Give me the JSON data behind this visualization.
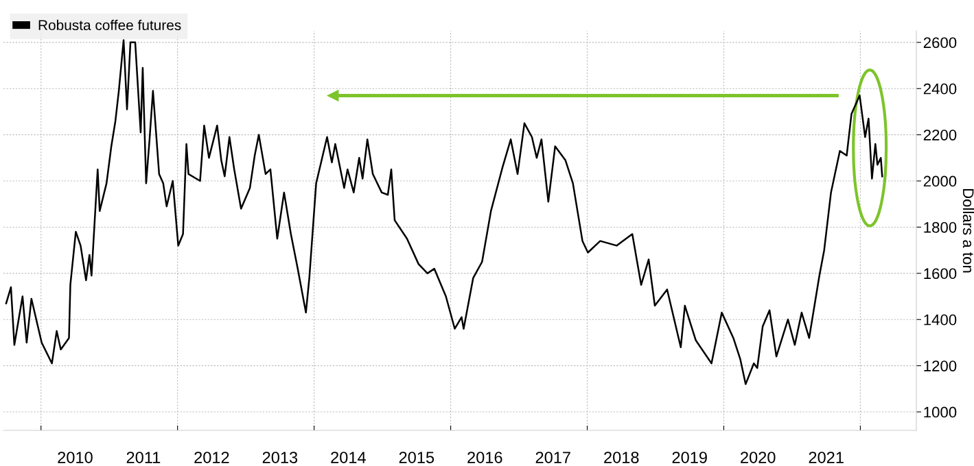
{
  "chart_data": {
    "type": "line",
    "ylabel": "Dollars a ton",
    "xlim": [
      2009.45,
      2022.82
    ],
    "ylim": [
      920,
      2650
    ],
    "xticks": [
      {
        "value": 2010,
        "label": null
      },
      {
        "value": 2010.5,
        "label": "2010"
      },
      {
        "value": 2011.5,
        "label": "2011"
      },
      {
        "value": 2012,
        "label": null
      },
      {
        "value": 2012.5,
        "label": "2012"
      },
      {
        "value": 2013.5,
        "label": "2013"
      },
      {
        "value": 2014,
        "label": null
      },
      {
        "value": 2014.5,
        "label": "2014"
      },
      {
        "value": 2015.5,
        "label": "2015"
      },
      {
        "value": 2016,
        "label": null
      },
      {
        "value": 2016.5,
        "label": "2016"
      },
      {
        "value": 2017.5,
        "label": "2017"
      },
      {
        "value": 2018,
        "label": null
      },
      {
        "value": 2018.5,
        "label": "2018"
      },
      {
        "value": 2019.5,
        "label": "2019"
      },
      {
        "value": 2020,
        "label": null
      },
      {
        "value": 2020.5,
        "label": "2020"
      },
      {
        "value": 2021.5,
        "label": "2021"
      },
      {
        "value": 2022,
        "label": null
      }
    ],
    "yticks": [
      1000,
      1200,
      1400,
      1600,
      1800,
      2000,
      2200,
      2400,
      2600
    ],
    "grid": true,
    "legend": "top left",
    "marker": "none",
    "line_style": "solid",
    "series": [
      {
        "name": "Robusta coffee futures",
        "color": "#000000",
        "x": [
          2009.49,
          2009.56,
          2009.61,
          2009.73,
          2009.79,
          2009.86,
          2010.01,
          2010.16,
          2010.23,
          2010.29,
          2010.41,
          2010.43,
          2010.51,
          2010.58,
          2010.66,
          2010.71,
          2010.74,
          2010.83,
          2010.86,
          2010.96,
          2011.03,
          2011.09,
          2011.14,
          2011.21,
          2011.26,
          2011.31,
          2011.38,
          2011.46,
          2011.49,
          2011.54,
          2011.59,
          2011.64,
          2011.73,
          2011.79,
          2011.84,
          2011.93,
          2012.01,
          2012.08,
          2012.13,
          2012.16,
          2012.33,
          2012.39,
          2012.46,
          2012.58,
          2012.64,
          2012.69,
          2012.76,
          2012.83,
          2012.93,
          2013.06,
          2013.13,
          2013.19,
          2013.29,
          2013.36,
          2013.46,
          2013.56,
          2013.66,
          2013.76,
          2013.88,
          2013.93,
          2014.03,
          2014.19,
          2014.26,
          2014.31,
          2014.44,
          2014.49,
          2014.58,
          2014.66,
          2014.71,
          2014.78,
          2014.86,
          2014.99,
          2015.08,
          2015.13,
          2015.18,
          2015.36,
          2015.53,
          2015.66,
          2015.76,
          2015.93,
          2016.06,
          2016.16,
          2016.19,
          2016.33,
          2016.46,
          2016.59,
          2016.76,
          2016.88,
          2016.98,
          2017.08,
          2017.19,
          2017.26,
          2017.33,
          2017.43,
          2017.53,
          2017.68,
          2017.79,
          2017.93,
          2018.01,
          2018.19,
          2018.43,
          2018.66,
          2018.79,
          2018.9,
          2018.99,
          2019.17,
          2019.37,
          2019.43,
          2019.59,
          2019.82,
          2019.97,
          2020.14,
          2020.24,
          2020.32,
          2020.44,
          2020.49,
          2020.57,
          2020.67,
          2020.77,
          2020.94,
          2021.04,
          2021.14,
          2021.25,
          2021.4,
          2021.47,
          2021.57,
          2021.7,
          2021.8,
          2021.87,
          2021.99,
          2022.07,
          2022.12,
          2022.17,
          2022.22,
          2022.25,
          2022.3,
          2022.32
        ],
        "values": [
          1470,
          1540,
          1290,
          1500,
          1300,
          1490,
          1300,
          1210,
          1350,
          1270,
          1320,
          1550,
          1780,
          1720,
          1570,
          1680,
          1590,
          2050,
          1870,
          1990,
          2150,
          2260,
          2390,
          2610,
          2310,
          2600,
          2600,
          2210,
          2490,
          1990,
          2180,
          2390,
          2030,
          1990,
          1890,
          2000,
          1720,
          1770,
          2160,
          2030,
          2000,
          2240,
          2100,
          2240,
          2090,
          2020,
          2190,
          2050,
          1880,
          1970,
          2110,
          2200,
          2030,
          2050,
          1750,
          1950,
          1770,
          1620,
          1430,
          1580,
          1990,
          2190,
          2080,
          2160,
          1970,
          2050,
          1950,
          2100,
          2010,
          2180,
          2030,
          1950,
          1940,
          2050,
          1830,
          1750,
          1640,
          1600,
          1620,
          1500,
          1360,
          1410,
          1360,
          1580,
          1650,
          1870,
          2060,
          2180,
          2030,
          2250,
          2190,
          2100,
          2180,
          1910,
          2150,
          2090,
          1990,
          1740,
          1690,
          1740,
          1720,
          1770,
          1550,
          1660,
          1460,
          1530,
          1280,
          1460,
          1310,
          1210,
          1430,
          1320,
          1230,
          1120,
          1210,
          1190,
          1370,
          1440,
          1240,
          1400,
          1290,
          1430,
          1320,
          1590,
          1700,
          1950,
          2130,
          2110,
          2290,
          2370,
          2190,
          2270,
          2010,
          2160,
          2070,
          2100,
          2020
        ]
      }
    ]
  }
}
